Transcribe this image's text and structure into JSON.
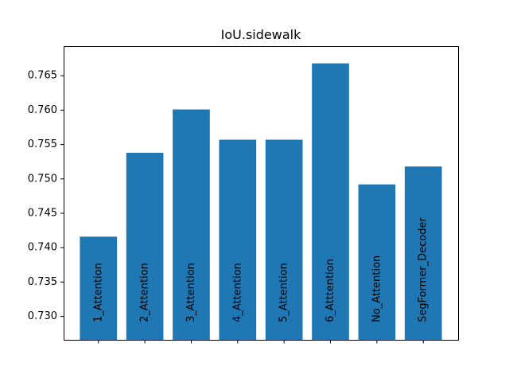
{
  "chart_data": {
    "type": "bar",
    "title": "IoU.sidewalk",
    "xlabel": "",
    "ylabel": "",
    "categories": [
      "1_Attention",
      "2_Attention",
      "3_Attention",
      "4_Attention",
      "5_Attention",
      "6_Atttention",
      "No_Attention",
      "SegFormer_Decoder"
    ],
    "values": [
      0.7416,
      0.7538,
      0.7601,
      0.7557,
      0.7557,
      0.7668,
      0.7492,
      0.7518
    ],
    "ylim": [
      0.7266,
      0.7693
    ],
    "yticks": [
      0.73,
      0.735,
      0.74,
      0.745,
      0.75,
      0.755,
      0.76,
      0.765
    ],
    "ytick_labels": [
      "0.730",
      "0.735",
      "0.740",
      "0.745",
      "0.750",
      "0.755",
      "0.760",
      "0.765"
    ],
    "bar_color": "#1f77b4",
    "grid": false,
    "bar_labels_inside": true
  }
}
